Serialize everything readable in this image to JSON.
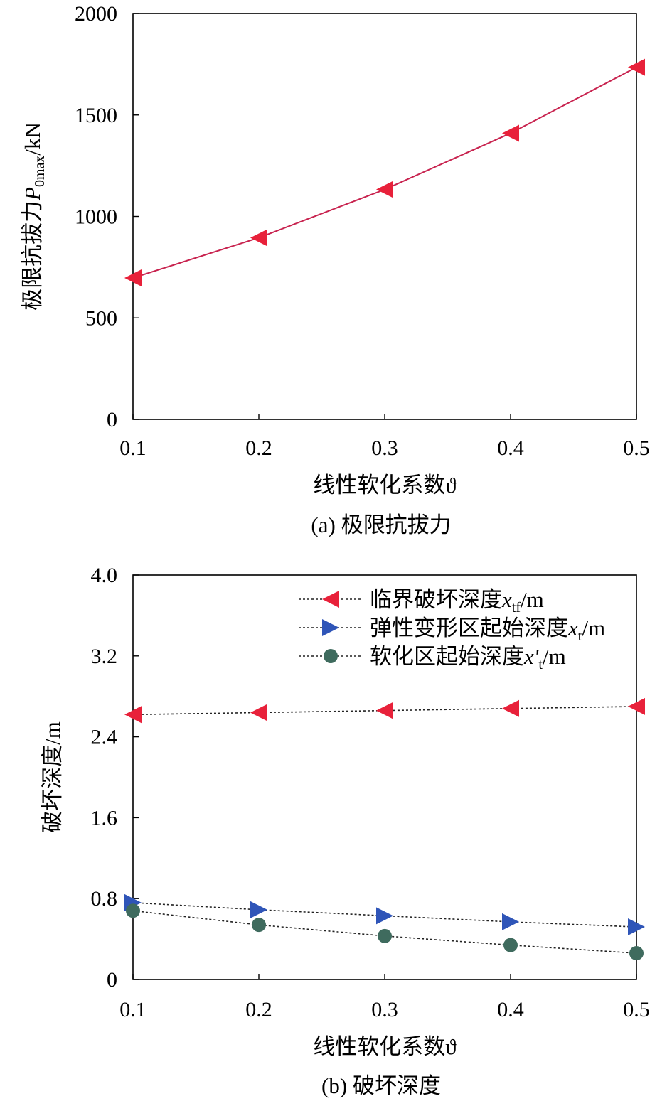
{
  "chart_data": [
    {
      "type": "line",
      "caption": "(a) 极限抗拔力",
      "xlabel": "线性软化系数ϑ",
      "ylabel": "极限抗拔力P0max/kN",
      "ylabel_parts": {
        "main": "极限抗拔力",
        "var": "P",
        "sub": "0max",
        "unit": "/kN"
      },
      "x": [
        0.1,
        0.2,
        0.3,
        0.4,
        0.5
      ],
      "xlim": [
        0.1,
        0.5
      ],
      "ylim": [
        0,
        2000
      ],
      "xticks": [
        "0.1",
        "0.2",
        "0.3",
        "0.4",
        "0.5"
      ],
      "yticks": [
        "0",
        "500",
        "1000",
        "1500",
        "2000"
      ],
      "grid": false,
      "series": [
        {
          "values": [
            697,
            895,
            1133,
            1410,
            1735
          ],
          "color": "#e8213a",
          "line_color": "#c8234f",
          "marker": "triangle-left",
          "dashed": false
        }
      ]
    },
    {
      "type": "line",
      "caption": "(b) 破坏深度",
      "xlabel": "线性软化系数ϑ",
      "ylabel": "破坏深度/m",
      "x": [
        0.1,
        0.2,
        0.3,
        0.4,
        0.5
      ],
      "xlim": [
        0.1,
        0.5
      ],
      "ylim": [
        0,
        4.0
      ],
      "xticks": [
        "0.1",
        "0.2",
        "0.3",
        "0.4",
        "0.5"
      ],
      "yticks": [
        "0",
        "0.8",
        "1.6",
        "2.4",
        "3.2",
        "4.0"
      ],
      "grid": false,
      "legend_position": "top-right",
      "series": [
        {
          "name": "临界破坏深度xtf/m",
          "name_parts": {
            "main": "临界破坏深度",
            "var": "x",
            "sub": "tf",
            "unit": "/m"
          },
          "values": [
            2.62,
            2.64,
            2.66,
            2.68,
            2.7
          ],
          "color": "#e8213a",
          "marker": "triangle-left",
          "dashed": true
        },
        {
          "name": "弹性变形区起始深度xt/m",
          "name_parts": {
            "main": "弹性变形区起始深度",
            "var": "x",
            "sub": "t",
            "unit": "/m"
          },
          "values": [
            0.76,
            0.69,
            0.63,
            0.57,
            0.52
          ],
          "color": "#2f55b8",
          "marker": "triangle-right",
          "dashed": true
        },
        {
          "name": "软化区起始深度x't/m",
          "name_parts": {
            "main": "软化区起始深度",
            "var": "x'",
            "sub": "t",
            "unit": "/m"
          },
          "values": [
            0.68,
            0.54,
            0.43,
            0.34,
            0.26
          ],
          "color": "#3f6b5e",
          "marker": "circle",
          "dashed": true
        }
      ]
    }
  ]
}
